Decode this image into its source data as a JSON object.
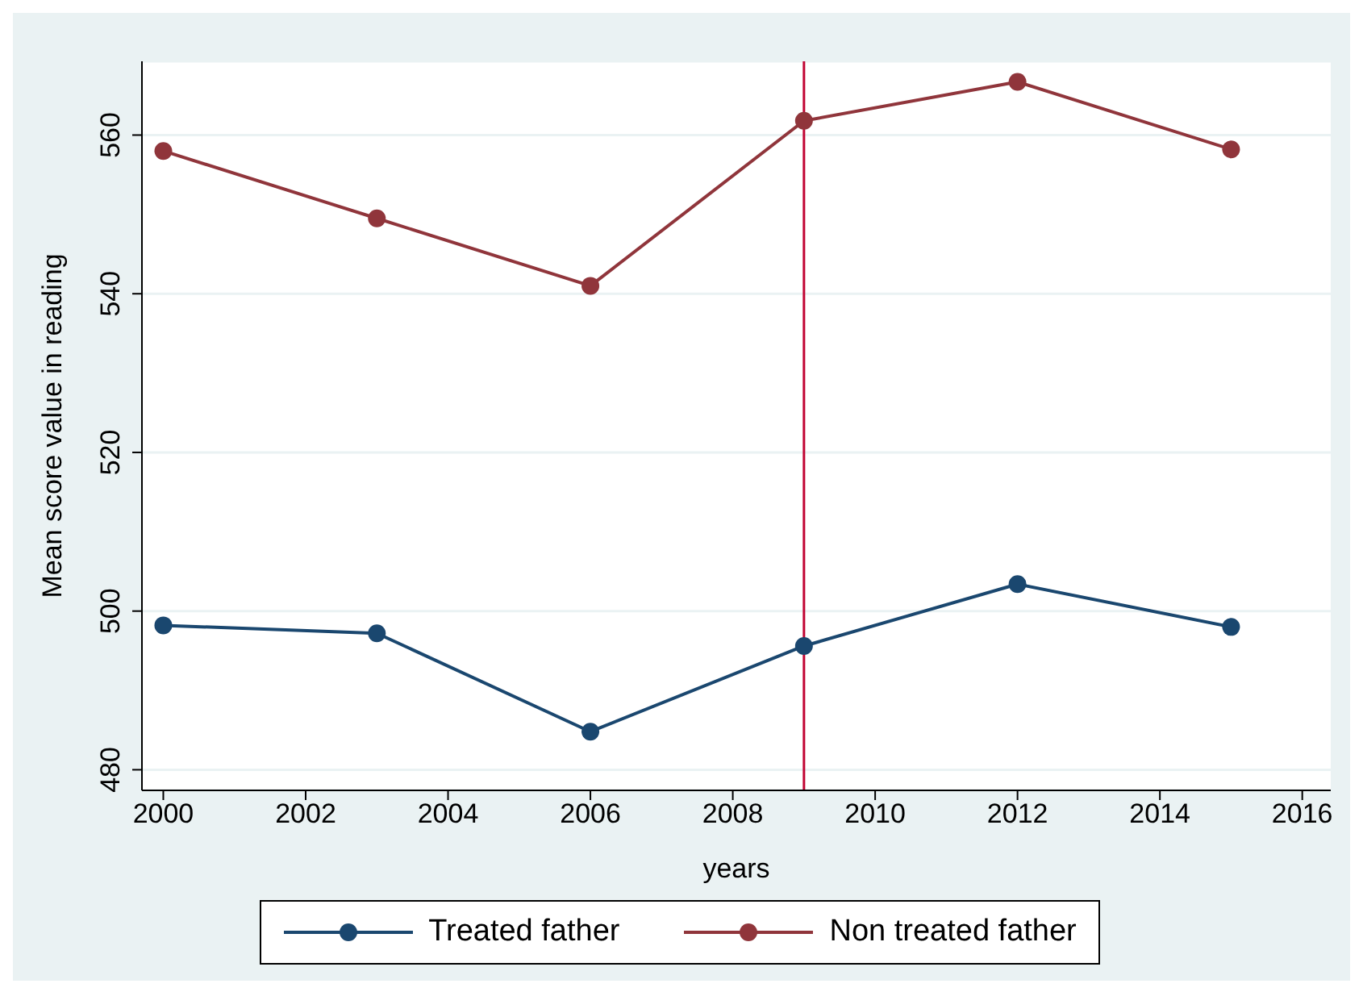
{
  "chart_data": {
    "type": "line",
    "xlabel": "years",
    "ylabel": "Mean score value in reading",
    "x": [
      2000,
      2003,
      2006,
      2009,
      2012,
      2015
    ],
    "series": [
      {
        "name": "Treated father",
        "color": "#1a476f",
        "values": [
          498.2,
          497.2,
          484.8,
          495.6,
          503.4,
          498.0
        ]
      },
      {
        "name": "Non treated father",
        "color": "#90353b",
        "values": [
          558.0,
          549.5,
          541.0,
          561.8,
          566.7,
          558.2
        ]
      }
    ],
    "xlim": [
      1999.7,
      2016.4
    ],
    "xticks": [
      2000,
      2002,
      2004,
      2006,
      2008,
      2010,
      2012,
      2014,
      2016
    ],
    "ylim": [
      477.4,
      569.3
    ],
    "yticks": [
      480,
      500,
      520,
      540,
      560
    ],
    "ref_lines": [
      {
        "axis": "x",
        "value": 2009,
        "color": "#c10534"
      }
    ],
    "grid": "y",
    "legend": "bottom",
    "marker": "circle",
    "line_style": "solid"
  }
}
